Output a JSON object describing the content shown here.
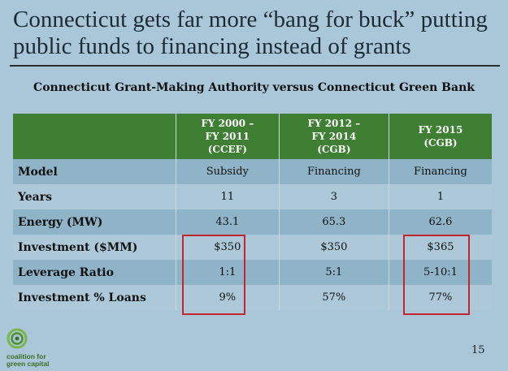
{
  "slide": {
    "title": "Connecticut gets far more “bang for buck” putting public funds to financing instead of grants",
    "page_number": "15"
  },
  "table": {
    "caption": "Connecticut Grant-Making Authority versus Connecticut Green Bank",
    "columns": [
      {
        "line1": "FY 2000 –",
        "line2": "FY 2011",
        "line3": "(CCEF)"
      },
      {
        "line1": "FY 2012 –",
        "line2": "FY 2014",
        "line3": "(CGB)"
      },
      {
        "line1": "FY 2015",
        "line2": "(CGB)",
        "line3": ""
      }
    ],
    "rows": [
      {
        "label": "Model",
        "values": [
          "Subsidy",
          "Financing",
          "Financing"
        ]
      },
      {
        "label": "Years",
        "values": [
          "11",
          "3",
          "1"
        ]
      },
      {
        "label": "Energy (MW)",
        "values": [
          "43.1",
          "65.3",
          "62.6"
        ]
      },
      {
        "label": "Investment ($MM)",
        "values": [
          "$350",
          "$350",
          "$365"
        ]
      },
      {
        "label": "Leverage Ratio",
        "values": [
          "1:1",
          "5:1",
          "5-10:1"
        ]
      },
      {
        "label": "Investment % Loans",
        "values": [
          "9%",
          "57%",
          "77%"
        ]
      }
    ]
  },
  "logo": {
    "icon": "green-spiral-logo-icon",
    "line1": "coalition for",
    "line2": "green capital"
  },
  "colors": {
    "header_green": "#3e7f33",
    "highlight_red": "#c3272b",
    "background": "#a9c7d9"
  }
}
